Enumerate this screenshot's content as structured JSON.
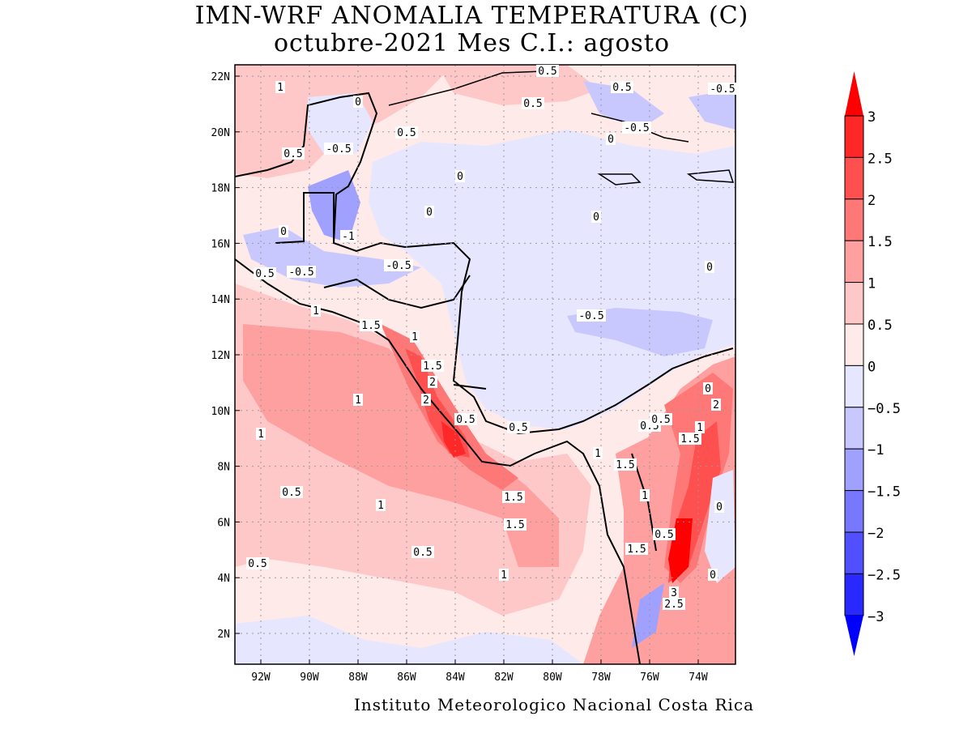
{
  "title": {
    "line1": "IMN-WRF  ANOMALIA TEMPERATURA (C)",
    "line2": "octubre-2021 Mes C.I.: agosto"
  },
  "footer": "Instituto Meteorologico Nacional Costa Rica",
  "map": {
    "variable": "temperature anomaly",
    "units": "C",
    "lat_ticks": [
      "22N",
      "20N",
      "18N",
      "16N",
      "14N",
      "12N",
      "10N",
      "8N",
      "6N",
      "4N",
      "2N"
    ],
    "lon_ticks": [
      "92W",
      "90W",
      "88W",
      "86W",
      "84W",
      "82W",
      "80W",
      "78W",
      "76W",
      "74W"
    ],
    "contour_labels": [
      "1",
      "0.5",
      "-0.5",
      "0",
      "0.5",
      "0.5",
      "0",
      "0",
      "-1",
      "0",
      "-0.5",
      "-0.5",
      "0.5",
      "1",
      "1.5",
      "1",
      "1.5",
      "2",
      "2",
      "1",
      "1",
      "0.5",
      "0.5",
      "1.5",
      "1",
      "1.5",
      "0.5",
      "1",
      "0.5",
      "0.5",
      "-0.5",
      "0",
      "-0.5",
      "0.5",
      "0",
      "0",
      "0.5",
      "-0.5",
      "0.5",
      "1.5",
      "1",
      "1",
      "1.5",
      "2",
      "0",
      "0.5",
      "1.5",
      "0",
      "3",
      "2.5",
      "1",
      "0.5",
      "0"
    ]
  },
  "colorbar": {
    "labels": [
      "3",
      "2.5",
      "2",
      "1.5",
      "1",
      "0.5",
      "0",
      "-0.5",
      "-1",
      "-1.5",
      "-2",
      "-2.5",
      "-3"
    ],
    "colors": [
      "#ff0000",
      "#ff2828",
      "#ff5050",
      "#ff7878",
      "#ffa0a0",
      "#ffc8c8",
      "#ffeaea",
      "#e6e6ff",
      "#c8c8ff",
      "#a0a0ff",
      "#7878ff",
      "#5050ff",
      "#2828ff",
      "#0000ff"
    ]
  }
}
